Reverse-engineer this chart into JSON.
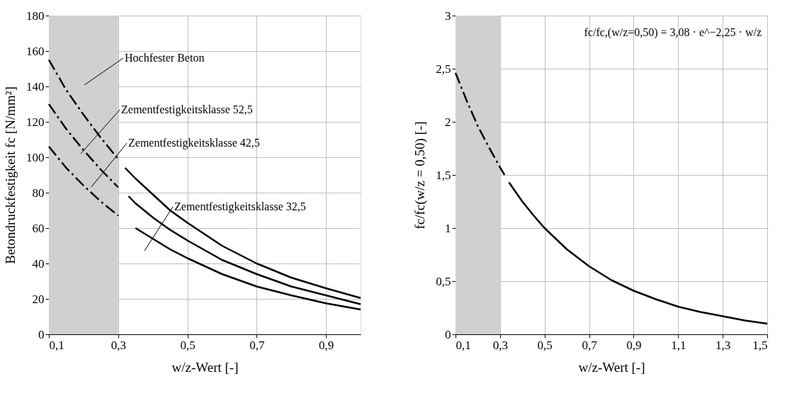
{
  "chart_data": [
    {
      "type": "line",
      "xlabel": "w/z-Wert [-]",
      "ylabel": "Betondruckfestigkeit fc [N/mm²]",
      "xlim": [
        0.1,
        1.0
      ],
      "xticks": [
        {
          "value": 0.1,
          "label": "0,1"
        },
        {
          "value": 0.3,
          "label": "0,3"
        },
        {
          "value": 0.5,
          "label": "0,5"
        },
        {
          "value": 0.7,
          "label": "0,7"
        },
        {
          "value": 0.9,
          "label": "0,9"
        }
      ],
      "ylim": [
        0,
        180
      ],
      "yticks": [
        0,
        20,
        40,
        60,
        80,
        100,
        120,
        140,
        160,
        180
      ],
      "grid": true,
      "bands": [
        {
          "axis": "x",
          "from": 0.1,
          "to": 0.3,
          "color": "#d0d0d0"
        }
      ],
      "series": [
        {
          "color": "#000000",
          "line_style": "dashed",
          "x": [
            0.1,
            0.15,
            0.2,
            0.25,
            0.3
          ],
          "values": [
            155,
            138,
            124,
            111,
            99
          ]
        },
        {
          "color": "#000000",
          "line_style": "solid",
          "x": [
            0.32,
            0.35,
            0.4,
            0.45,
            0.5,
            0.6,
            0.7,
            0.8,
            0.9,
            1.0
          ],
          "values": [
            94,
            88,
            79,
            70,
            63,
            50,
            40,
            32,
            26,
            20.5
          ]
        },
        {
          "color": "#000000",
          "line_style": "dashed",
          "x": [
            0.1,
            0.15,
            0.2,
            0.25,
            0.3
          ],
          "values": [
            130,
            116,
            104,
            93,
            83
          ]
        },
        {
          "color": "#000000",
          "line_style": "solid",
          "x": [
            0.33,
            0.35,
            0.4,
            0.45,
            0.5,
            0.6,
            0.7,
            0.8,
            0.9,
            1.0
          ],
          "values": [
            78,
            74,
            66,
            59,
            53,
            42,
            34,
            27,
            22,
            17
          ]
        },
        {
          "color": "#000000",
          "line_style": "dashed",
          "x": [
            0.1,
            0.15,
            0.2,
            0.25,
            0.3
          ],
          "values": [
            106,
            94,
            84,
            75,
            67
          ]
        },
        {
          "color": "#000000",
          "line_style": "solid",
          "x": [
            0.35,
            0.4,
            0.45,
            0.5,
            0.6,
            0.7,
            0.8,
            0.9,
            1.0
          ],
          "values": [
            60,
            54,
            48,
            43,
            34,
            27,
            22,
            17.5,
            14
          ]
        }
      ],
      "annotations": [
        "Hochfester Beton",
        "Zementfestigkeitsklasse 52,5",
        "Zementfestigkeitsklasse 42,5",
        "Zementfestigkeitsklasse 32,5"
      ]
    },
    {
      "type": "line",
      "xlabel": "w/z-Wert [-]",
      "ylabel": "fc/fc(w/z = 0,50) [-]",
      "xlim": [
        0.1,
        1.5
      ],
      "xticks": [
        {
          "value": 0.1,
          "label": "0,1"
        },
        {
          "value": 0.3,
          "label": "0,3"
        },
        {
          "value": 0.5,
          "label": "0,5"
        },
        {
          "value": 0.7,
          "label": "0,7"
        },
        {
          "value": 0.9,
          "label": "0,9"
        },
        {
          "value": 1.1,
          "label": "1,1"
        },
        {
          "value": 1.3,
          "label": "1,3"
        },
        {
          "value": 1.5,
          "label": "1,5"
        }
      ],
      "ylim": [
        0,
        3
      ],
      "yticks": [
        0,
        {
          "value": 0.5,
          "label": "0,5"
        },
        1,
        {
          "value": 1.5,
          "label": "1,5"
        },
        2,
        {
          "value": 2.5,
          "label": "2,5"
        },
        3
      ],
      "grid": true,
      "bands": [
        {
          "axis": "x",
          "from": 0.1,
          "to": 0.3,
          "color": "#d0d0d0"
        }
      ],
      "series": [
        {
          "color": "#000000",
          "line_style": "dashed",
          "x": [
            0.1,
            0.15,
            0.2,
            0.25,
            0.3,
            0.32
          ],
          "values": [
            2.46,
            2.2,
            1.96,
            1.76,
            1.57,
            1.5
          ]
        },
        {
          "color": "#000000",
          "line_style": "solid",
          "x": [
            0.34,
            0.4,
            0.45,
            0.5,
            0.6,
            0.7,
            0.8,
            0.9,
            1.0,
            1.1,
            1.2,
            1.3,
            1.4,
            1.5
          ],
          "values": [
            1.43,
            1.25,
            1.12,
            1.0,
            0.8,
            0.64,
            0.51,
            0.41,
            0.33,
            0.26,
            0.21,
            0.17,
            0.13,
            0.1
          ]
        }
      ],
      "annotations": [
        "fc/fc,(w/z=0,50) = 3,08 · e^−2,25 · w/z"
      ]
    }
  ]
}
